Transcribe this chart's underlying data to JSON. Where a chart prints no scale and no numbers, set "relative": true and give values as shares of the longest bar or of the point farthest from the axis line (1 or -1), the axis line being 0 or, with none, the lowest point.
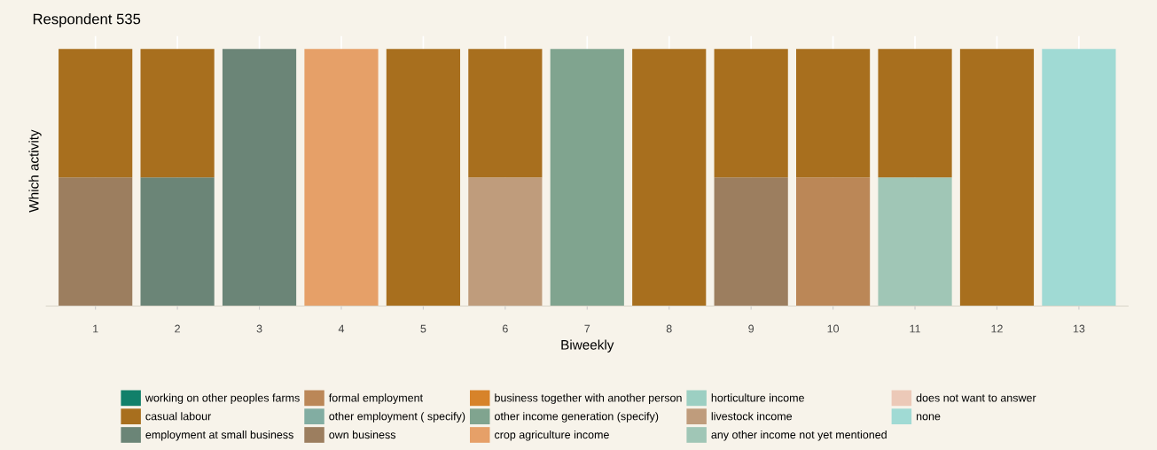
{
  "chart_data": {
    "type": "bar",
    "title": "Respondent 535",
    "xlabel": "Biweekly",
    "ylabel": "Which activity",
    "relative": true,
    "stacked": true,
    "grid": "x",
    "legend": "bottom",
    "tick_labels": "x",
    "categories": [
      "1",
      "2",
      "3",
      "4",
      "5",
      "6",
      "7",
      "8",
      "9",
      "10",
      "11",
      "12",
      "13"
    ],
    "series": [
      {
        "name": "none",
        "color": "#a0dad4",
        "values": [
          null,
          null,
          null,
          null,
          null,
          null,
          null,
          null,
          null,
          null,
          null,
          null,
          1
        ]
      },
      {
        "name": "does not want to answer",
        "color": "#ecc9b8",
        "values": [
          null,
          null,
          null,
          null,
          null,
          null,
          null,
          null,
          null,
          null,
          null,
          null,
          null
        ]
      },
      {
        "name": "any other income not yet mentioned",
        "color": "#a0c6b6",
        "values": [
          null,
          null,
          null,
          null,
          null,
          null,
          null,
          null,
          null,
          null,
          0.5,
          null,
          null
        ]
      },
      {
        "name": "livestock income",
        "color": "#bf9c7c",
        "values": [
          null,
          null,
          null,
          null,
          null,
          0.5,
          null,
          null,
          null,
          null,
          null,
          null,
          null
        ]
      },
      {
        "name": "horticulture income",
        "color": "#9ccfc2",
        "values": [
          null,
          null,
          null,
          null,
          null,
          null,
          null,
          null,
          null,
          null,
          null,
          null,
          null
        ]
      },
      {
        "name": "crop agriculture income",
        "color": "#e6a068",
        "values": [
          null,
          null,
          null,
          1,
          null,
          null,
          null,
          null,
          null,
          null,
          null,
          null,
          null
        ]
      },
      {
        "name": "other income generation (specify)",
        "color": "#80a48f",
        "values": [
          null,
          null,
          null,
          null,
          null,
          null,
          1,
          null,
          null,
          null,
          null,
          null,
          null
        ]
      },
      {
        "name": "business together with another person",
        "color": "#d7832a",
        "values": [
          null,
          null,
          null,
          null,
          null,
          null,
          null,
          null,
          null,
          null,
          null,
          null,
          null
        ]
      },
      {
        "name": "own business",
        "color": "#9c7e5f",
        "values": [
          0.5,
          null,
          null,
          null,
          null,
          null,
          null,
          null,
          0.5,
          null,
          null,
          null,
          null
        ]
      },
      {
        "name": "other employment ( specify)",
        "color": "#82ada2",
        "values": [
          null,
          null,
          null,
          null,
          null,
          null,
          null,
          null,
          null,
          null,
          null,
          null,
          null
        ]
      },
      {
        "name": "formal employment",
        "color": "#bb8757",
        "values": [
          null,
          null,
          null,
          null,
          null,
          null,
          null,
          null,
          null,
          0.5,
          null,
          null,
          null
        ]
      },
      {
        "name": "employment at small business",
        "color": "#6b8577",
        "values": [
          null,
          0.5,
          1,
          null,
          null,
          null,
          null,
          null,
          null,
          null,
          null,
          null,
          null
        ]
      },
      {
        "name": "casual labour",
        "color": "#a86f1e",
        "values": [
          0.5,
          0.5,
          null,
          null,
          1,
          0.5,
          null,
          1,
          0.5,
          0.5,
          0.5,
          1,
          null
        ]
      },
      {
        "name": "working on other peoples farms",
        "color": "#11806a",
        "values": [
          null,
          null,
          null,
          null,
          null,
          null,
          null,
          null,
          null,
          null,
          null,
          null,
          null
        ]
      }
    ]
  }
}
